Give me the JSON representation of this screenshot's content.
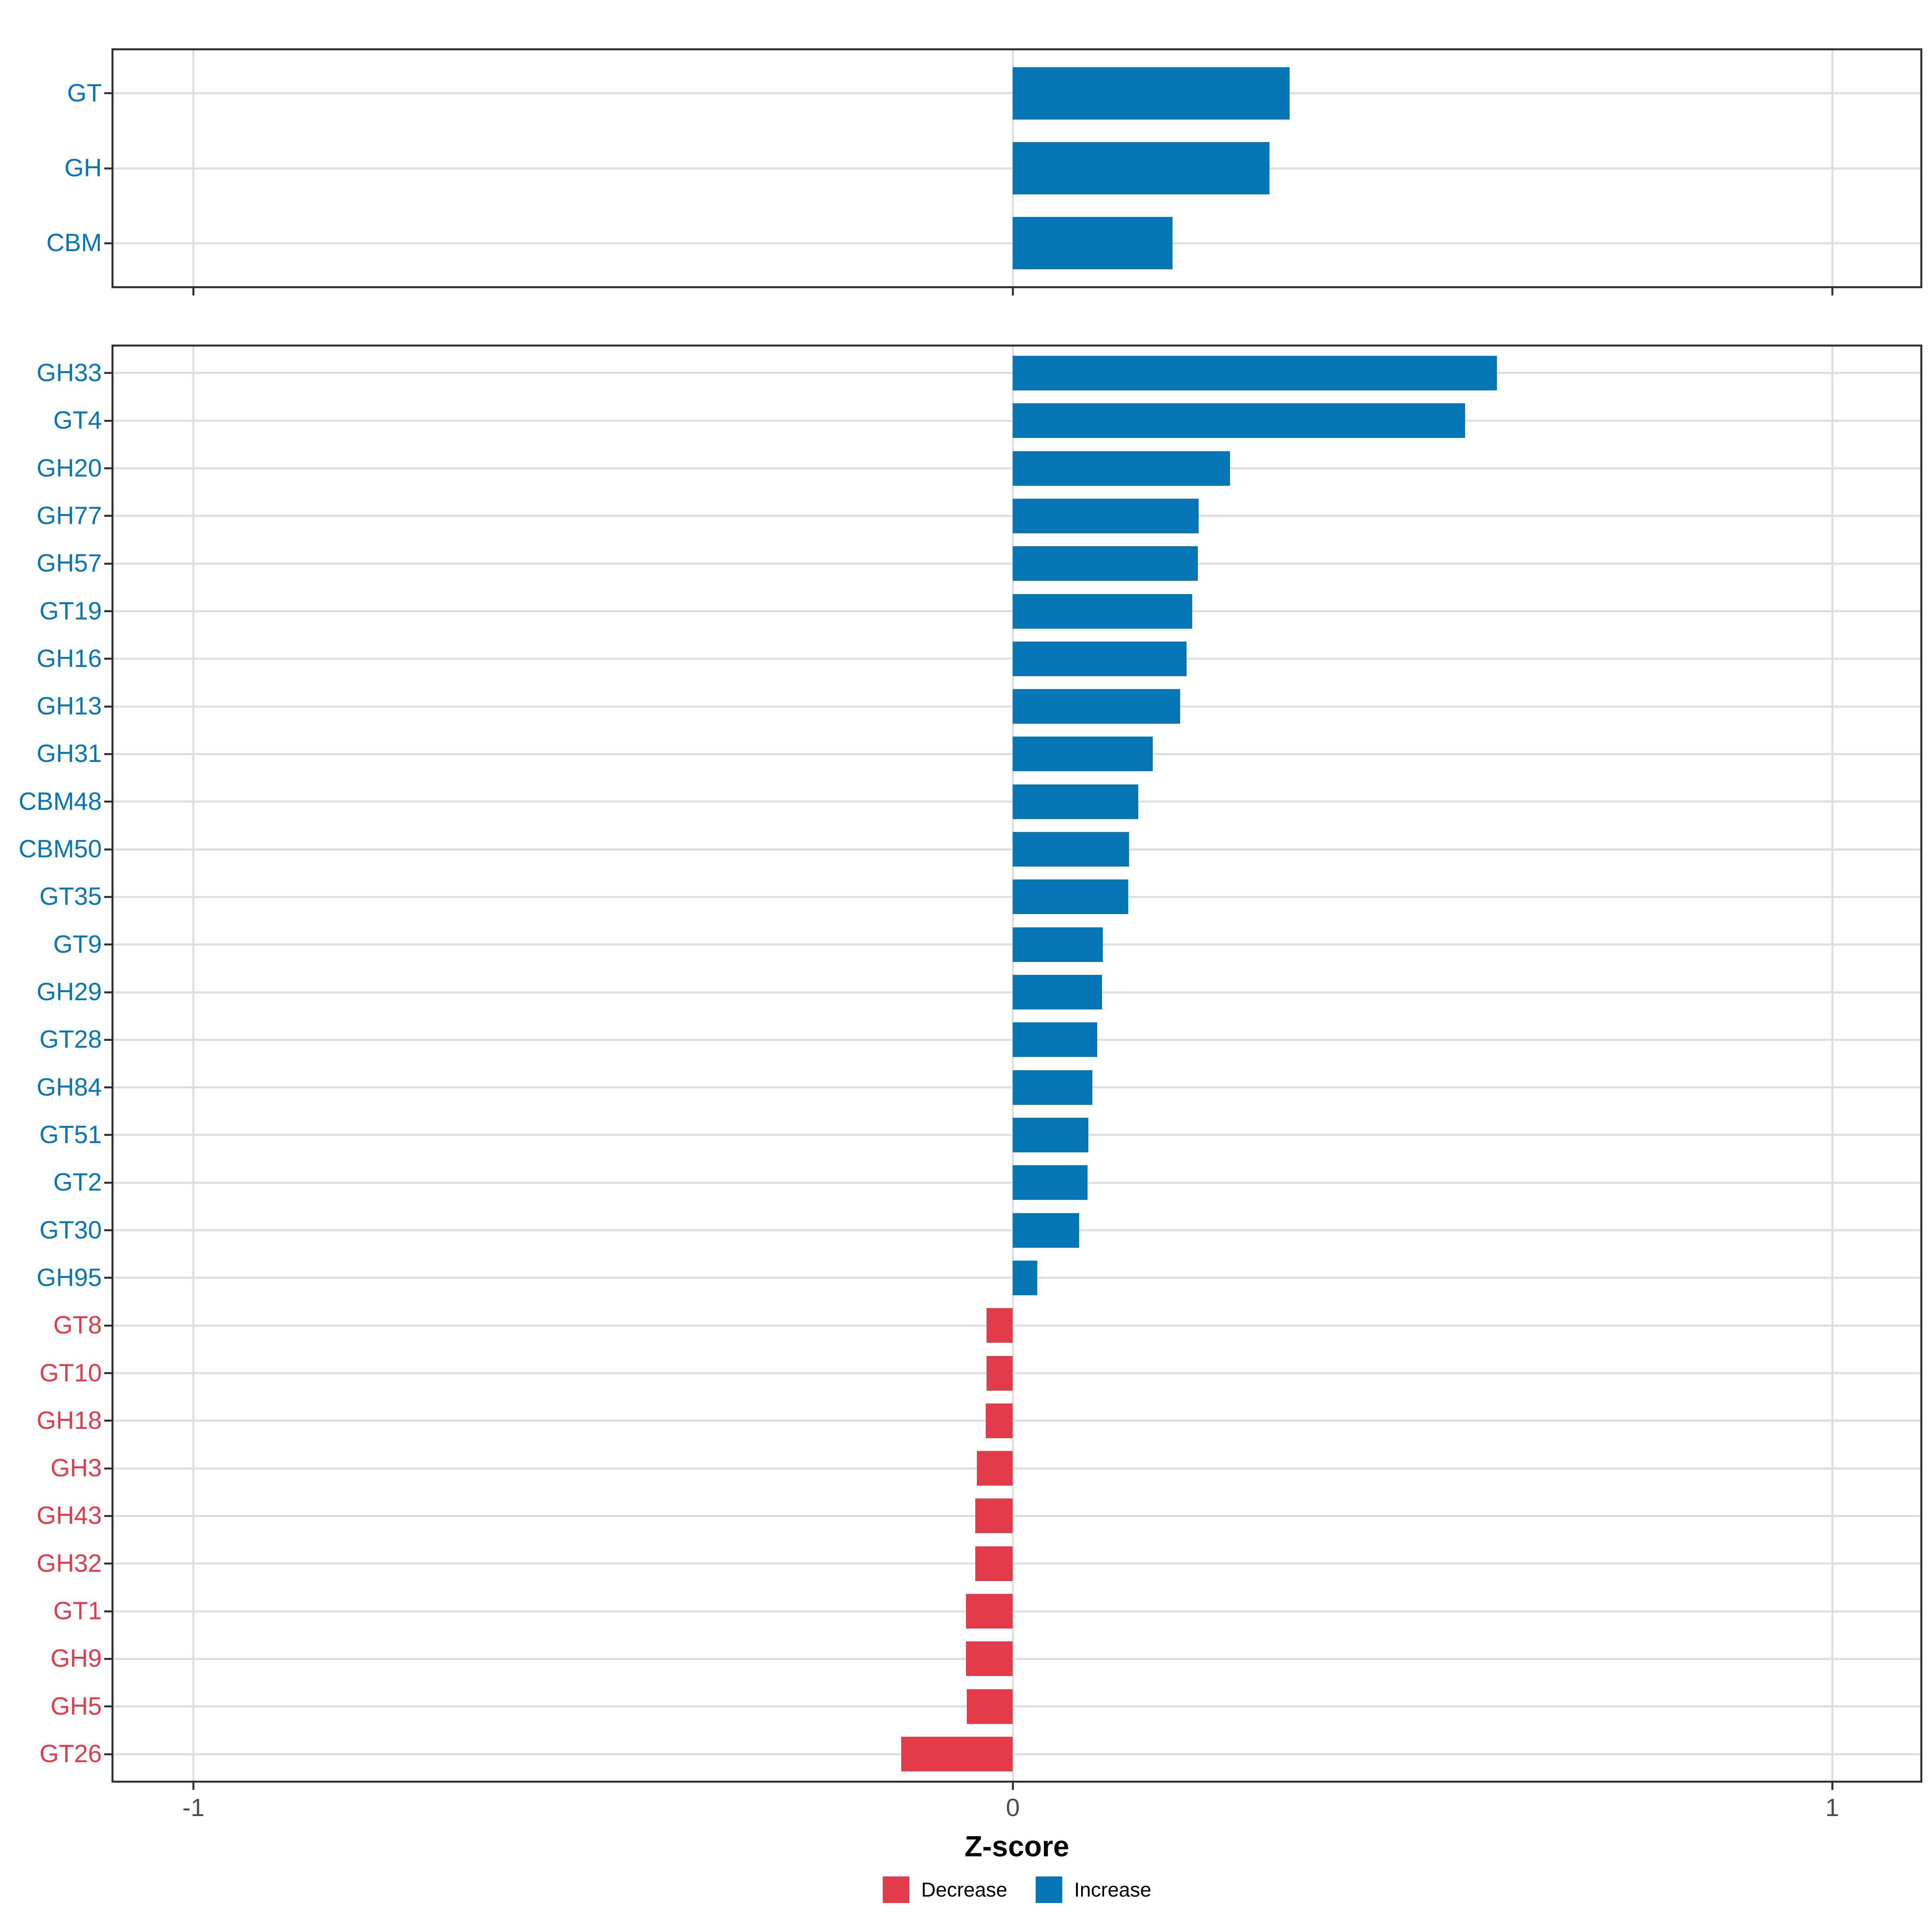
{
  "chart_data": {
    "type": "bar",
    "orientation": "horizontal",
    "xlabel": "Z-score",
    "x_tick_labels": [
      "-1",
      "0",
      "1"
    ],
    "x_tick_values": [
      -1,
      0,
      1
    ],
    "xlim": [
      -1.1,
      1.11
    ],
    "grid": "major",
    "legend_position": "bottom",
    "colors": {
      "increase": "#0776B6",
      "decrease": "#E43B4A",
      "grid": "#DEDEDE",
      "border": "#333333",
      "axis_text": "#4D4D4D"
    },
    "legend": [
      {
        "key": "decrease",
        "label": "Decrease"
      },
      {
        "key": "increase",
        "label": "Increase"
      }
    ],
    "panels": [
      {
        "name": "class-summary",
        "categories": [
          "GT",
          "GH",
          "CBM"
        ],
        "values": [
          0.338,
          0.313,
          0.195
        ]
      },
      {
        "name": "families",
        "categories": [
          "GH33",
          "GT4",
          "GH20",
          "GH77",
          "GH57",
          "GT19",
          "GH16",
          "GH13",
          "GH31",
          "CBM48",
          "CBM50",
          "GT35",
          "GT9",
          "GH29",
          "GT28",
          "GH84",
          "GT51",
          "GT2",
          "GT30",
          "GH95",
          "GT8",
          "GT10",
          "GH18",
          "GH3",
          "GH43",
          "GH32",
          "GT1",
          "GH9",
          "GH5",
          "GT26"
        ],
        "values": [
          0.591,
          0.552,
          0.265,
          0.227,
          0.226,
          0.219,
          0.212,
          0.204,
          0.171,
          0.153,
          0.142,
          0.141,
          0.11,
          0.109,
          0.103,
          0.097,
          0.092,
          0.091,
          0.081,
          0.03,
          -0.032,
          -0.032,
          -0.033,
          -0.044,
          -0.046,
          -0.046,
          -0.057,
          -0.057,
          -0.056,
          -0.136
        ]
      }
    ]
  }
}
